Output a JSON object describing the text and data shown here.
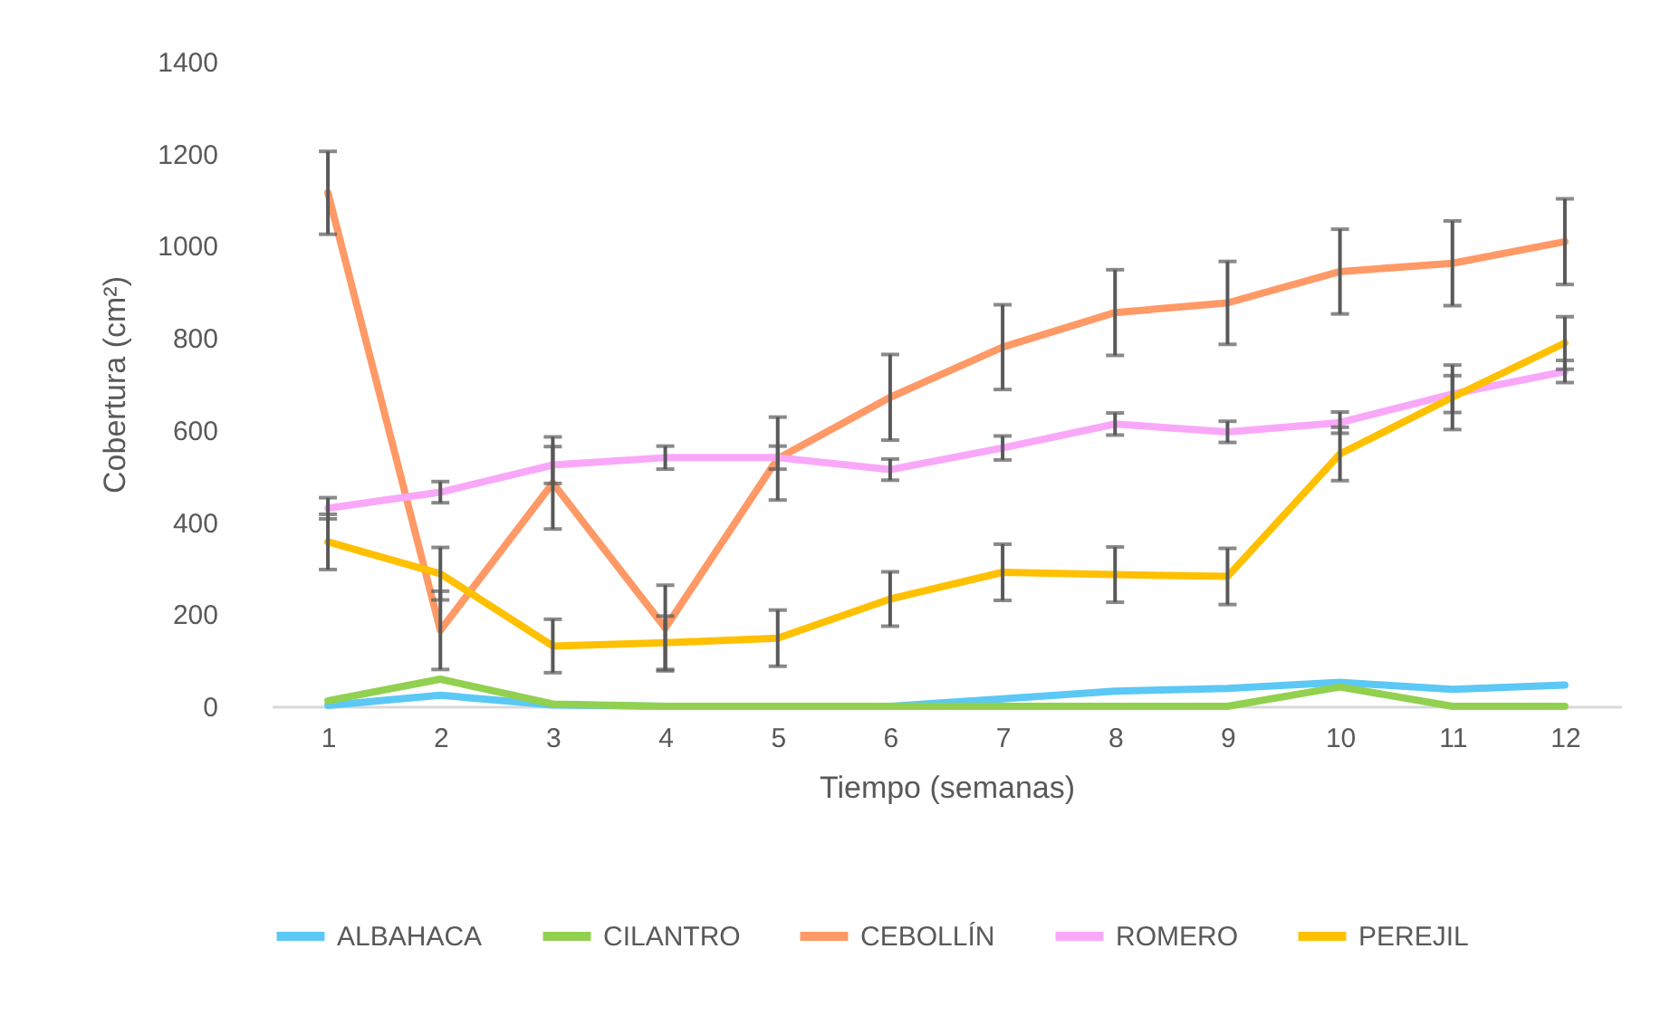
{
  "chart_data": {
    "type": "line",
    "xlabel": "Tiempo (semanas)",
    "ylabel": "Cobertura (cm²)",
    "x": [
      1,
      2,
      3,
      4,
      5,
      6,
      7,
      8,
      9,
      10,
      11,
      12
    ],
    "xlim": [
      0.5,
      12.5
    ],
    "xticks": [
      1,
      2,
      3,
      4,
      5,
      6,
      7,
      8,
      9,
      10,
      11,
      12
    ],
    "ylim": [
      0,
      1400
    ],
    "yticks": [
      0,
      200,
      400,
      600,
      800,
      1000,
      1200,
      1400
    ],
    "grid": false,
    "legend": "bottom",
    "marker": "none",
    "line_style": "solid",
    "series": [
      {
        "name": "ALBAHACA",
        "color": "#5bc8f5",
        "values": [
          2,
          24,
          3,
          0,
          0,
          0,
          16,
          33,
          39,
          52,
          37,
          46
        ]
      },
      {
        "name": "CILANTRO",
        "color": "#92d050",
        "values": [
          12,
          59,
          5,
          0,
          0,
          0,
          0,
          0,
          0,
          42,
          0,
          0
        ]
      },
      {
        "name": "CEBOLLÍN",
        "color": "#ff9966",
        "values": [
          1115,
          165,
          485,
          170,
          538,
          671,
          780,
          855,
          876,
          944,
          962,
          1009
        ],
        "errors": [
          90,
          85,
          100,
          93,
          90,
          93,
          92,
          93,
          90,
          92,
          92,
          93
        ]
      },
      {
        "name": "ROMERO",
        "color": "#f9a8f9",
        "values": [
          430,
          465,
          524,
          540,
          540,
          514,
          561,
          613,
          596,
          616,
          678,
          727
        ],
        "errors": [
          23,
          23,
          40,
          25,
          25,
          23,
          26,
          24,
          23,
          23,
          40,
          24
        ]
      },
      {
        "name": "PEREJIL",
        "color": "#ffc000",
        "values": [
          357,
          288,
          131,
          138,
          148,
          233,
          291,
          286,
          282,
          548,
          671,
          789
        ],
        "errors": [
          60,
          57,
          58,
          58,
          61,
          59,
          61,
          60,
          61,
          58,
          70,
          57
        ]
      }
    ]
  }
}
